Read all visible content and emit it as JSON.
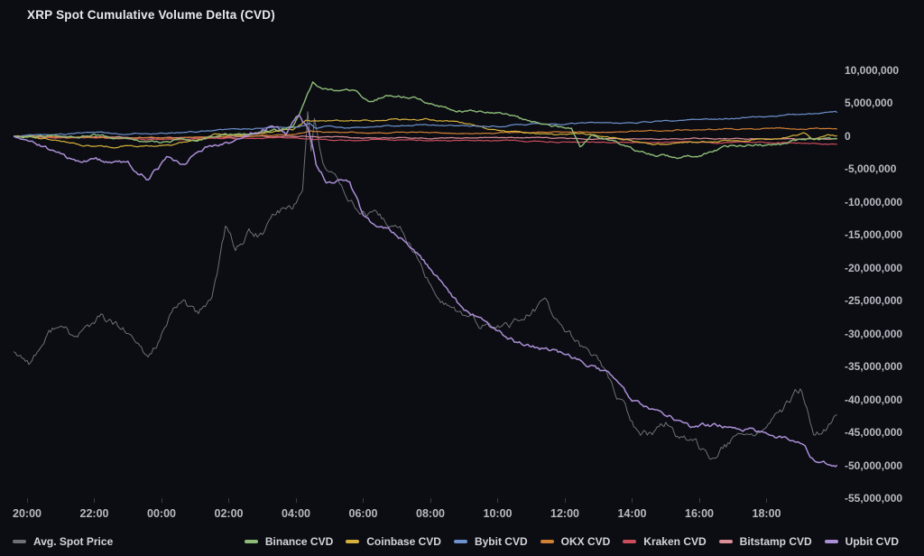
{
  "title": "XRP Spot Cumulative Volume Delta (CVD)",
  "colors": {
    "background": "#0c0d13",
    "title_text": "#e8e9ee",
    "axis_text": "#b8bac1",
    "legend_text": "#d3d5db",
    "avg_spot_price": "#6e7076",
    "binance": "#8dbd78",
    "coinbase": "#d6b23c",
    "bybit": "#6d92cd",
    "okx": "#d07f35",
    "kraken": "#cc4e5c",
    "bitstamp": "#dd8e96",
    "upbit": "#ab8fd6"
  },
  "legend": {
    "items": [
      {
        "label": "Avg. Spot Price",
        "color": "#6e7076"
      },
      {
        "label": "Binance CVD",
        "color": "#8dbd78"
      },
      {
        "label": "Coinbase CVD",
        "color": "#d6b23c"
      },
      {
        "label": "Bybit CVD",
        "color": "#6d92cd"
      },
      {
        "label": "OKX CVD",
        "color": "#d07f35"
      },
      {
        "label": "Kraken CVD",
        "color": "#cc4e5c"
      },
      {
        "label": "Bitstamp CVD",
        "color": "#dd8e96"
      },
      {
        "label": "Upbit CVD",
        "color": "#ab8fd6"
      }
    ]
  },
  "chart_data": {
    "type": "line",
    "title": "XRP Spot Cumulative Volume Delta (CVD)",
    "grid": false,
    "legend_position": "bottom",
    "x_axis": {
      "labels": [
        "20:00",
        "22:00",
        "00:00",
        "02:00",
        "04:00",
        "06:00",
        "08:00",
        "10:00",
        "12:00",
        "14:00",
        "16:00",
        "18:00"
      ],
      "tick_interval": "2 hours"
    },
    "y_axis": {
      "side": "right",
      "labels": [
        "10,000,000",
        "5,000,000",
        "0",
        "-5,000,000",
        "-10,000,000",
        "-15,000,000",
        "-20,000,000",
        "-25,000,000",
        "-30,000,000",
        "-35,000,000",
        "-40,000,000",
        "-45,000,000",
        "-50,000,000",
        "-55,000,000"
      ],
      "max": 10000000,
      "min": -55000000,
      "step": 5000000
    },
    "value_unit": "millions (multiply by 1,000,000 for right-axis units)",
    "note": "Avg. Spot Price has no visible value axis; its values below are visual positions expressed in right-axis units. Time values are hours after the 20:00 tick.",
    "draw_order": [
      0,
      6,
      5,
      4,
      2,
      3,
      1,
      7
    ],
    "series": [
      {
        "name": "Avg. Spot Price",
        "color": "#6e7076",
        "points": [
          [
            -0.4,
            -32.7
          ],
          [
            0.1,
            -34.1
          ],
          [
            0.9,
            -28.4
          ],
          [
            1.4,
            -30.7
          ],
          [
            2.2,
            -27.5
          ],
          [
            2.9,
            -29.7
          ],
          [
            3.6,
            -33.8
          ],
          [
            4.3,
            -27.3
          ],
          [
            4.7,
            -24.9
          ],
          [
            5.1,
            -27.5
          ],
          [
            5.5,
            -24.5
          ],
          [
            5.9,
            -14.2
          ],
          [
            6.2,
            -17
          ],
          [
            6.6,
            -14.7
          ],
          [
            7,
            -15.2
          ],
          [
            7.4,
            -11.5
          ],
          [
            7.9,
            -10.5
          ],
          [
            8.2,
            -8.1
          ],
          [
            8.35,
            4
          ],
          [
            8.45,
            -1.9
          ],
          [
            8.55,
            2.9
          ],
          [
            8.8,
            -4.7
          ],
          [
            9.3,
            -6.7
          ],
          [
            9.9,
            -11.5
          ],
          [
            10.8,
            -13.6
          ],
          [
            11.2,
            -14.7
          ],
          [
            11.9,
            -21.8
          ],
          [
            12.3,
            -24.5
          ],
          [
            12.8,
            -26.6
          ],
          [
            13.3,
            -28.4
          ],
          [
            13.9,
            -29.3
          ],
          [
            14.6,
            -27.9
          ],
          [
            15.4,
            -25.5
          ],
          [
            15.9,
            -28.9
          ],
          [
            16.4,
            -31.8
          ],
          [
            17,
            -33.8
          ],
          [
            17.6,
            -39.6
          ],
          [
            18.1,
            -44.4
          ],
          [
            18.5,
            -45.3
          ],
          [
            19,
            -43.7
          ],
          [
            19.6,
            -46.4
          ],
          [
            20.3,
            -48.2
          ],
          [
            21,
            -46.4
          ],
          [
            21.6,
            -45.1
          ],
          [
            22.2,
            -43.4
          ],
          [
            23,
            -38.6
          ],
          [
            23.4,
            -45.5
          ],
          [
            23.7,
            -44.7
          ],
          [
            24.1,
            -42.3
          ]
        ]
      },
      {
        "name": "Binance CVD",
        "color": "#8dbd78",
        "points": [
          [
            -0.4,
            0
          ],
          [
            1,
            -0.1
          ],
          [
            2,
            0.1
          ],
          [
            3.2,
            -0.6
          ],
          [
            4,
            -0.8
          ],
          [
            5,
            -0.4
          ],
          [
            6,
            0.2
          ],
          [
            7,
            0.7
          ],
          [
            7.9,
            1.3
          ],
          [
            8.2,
            4.5
          ],
          [
            8.5,
            8
          ],
          [
            9,
            7.1
          ],
          [
            9.8,
            6.8
          ],
          [
            10.05,
            5.6
          ],
          [
            10.25,
            5.2
          ],
          [
            10.7,
            6.3
          ],
          [
            11.5,
            6
          ],
          [
            12.1,
            4.9
          ],
          [
            12.6,
            4.2
          ],
          [
            13.2,
            3.8
          ],
          [
            13.9,
            3.6
          ],
          [
            14.3,
            3.3
          ],
          [
            14.9,
            2.2
          ],
          [
            15.4,
            1.8
          ],
          [
            16.2,
            1.2
          ],
          [
            16.45,
            -1.5
          ],
          [
            16.8,
            0
          ],
          [
            17.4,
            -0.5
          ],
          [
            18.2,
            -2.3
          ],
          [
            19.4,
            -3.3
          ],
          [
            20,
            -3
          ],
          [
            20.9,
            -1.6
          ],
          [
            22.5,
            -1.2
          ],
          [
            23,
            -0.5
          ],
          [
            24.1,
            -0.3
          ]
        ]
      },
      {
        "name": "Coinbase CVD",
        "color": "#d6b23c",
        "points": [
          [
            -0.4,
            0
          ],
          [
            0.8,
            -0.5
          ],
          [
            1.6,
            -1.3
          ],
          [
            2.6,
            -1.6
          ],
          [
            3.4,
            -1.4
          ],
          [
            4.4,
            -1.3
          ],
          [
            5.2,
            -0.3
          ],
          [
            5.6,
            0.3
          ],
          [
            6.4,
            0.3
          ],
          [
            7.2,
            0.5
          ],
          [
            7.9,
            1
          ],
          [
            8.3,
            2.3
          ],
          [
            9,
            2.4
          ],
          [
            9.6,
            2.3
          ],
          [
            10.3,
            2.4
          ],
          [
            11,
            2.5
          ],
          [
            11.9,
            2.6
          ],
          [
            12.5,
            2.3
          ],
          [
            13.1,
            1.8
          ],
          [
            13.8,
            1
          ],
          [
            14.8,
            0.5
          ],
          [
            15.8,
            0.3
          ],
          [
            16.5,
            0.5
          ],
          [
            17.5,
            -0.3
          ],
          [
            18.6,
            -1.2
          ],
          [
            19.5,
            -1
          ],
          [
            20.5,
            -0.8
          ],
          [
            21.5,
            -0.5
          ],
          [
            22.3,
            -0.5
          ],
          [
            23.1,
            0.5
          ],
          [
            23.4,
            -0.5
          ],
          [
            23.8,
            0.3
          ],
          [
            24.1,
            0.1
          ]
        ]
      },
      {
        "name": "Bybit CVD",
        "color": "#6d92cd",
        "points": [
          [
            -0.4,
            0
          ],
          [
            1,
            0.3
          ],
          [
            2,
            0.6
          ],
          [
            3,
            0.4
          ],
          [
            4,
            0.5
          ],
          [
            5,
            0.8
          ],
          [
            6,
            1
          ],
          [
            7,
            1.2
          ],
          [
            8,
            1.4
          ],
          [
            8.4,
            2
          ],
          [
            8.6,
            1.2
          ],
          [
            9,
            1.5
          ],
          [
            9.6,
            1.3
          ],
          [
            10.2,
            1.4
          ],
          [
            11,
            1.6
          ],
          [
            11.8,
            1.8
          ],
          [
            12.6,
            1.6
          ],
          [
            13.4,
            1.5
          ],
          [
            14.2,
            1.6
          ],
          [
            15,
            1.8
          ],
          [
            16,
            1.9
          ],
          [
            17,
            2
          ],
          [
            18,
            2.1
          ],
          [
            19,
            2.3
          ],
          [
            20,
            2.5
          ],
          [
            21,
            2.7
          ],
          [
            22,
            3
          ],
          [
            22.8,
            3.3
          ],
          [
            23.5,
            3.5
          ],
          [
            24.1,
            3.6
          ]
        ]
      },
      {
        "name": "OKX CVD",
        "color": "#d07f35",
        "points": [
          [
            -0.4,
            0
          ],
          [
            1,
            -0.1
          ],
          [
            2,
            -0.2
          ],
          [
            3,
            -0.3
          ],
          [
            4,
            -0.2
          ],
          [
            5,
            -0.1
          ],
          [
            6,
            0
          ],
          [
            7,
            0.1
          ],
          [
            8,
            0.3
          ],
          [
            8.4,
            0.8
          ],
          [
            9,
            0.6
          ],
          [
            10,
            0.5
          ],
          [
            11,
            0.6
          ],
          [
            12,
            0.5
          ],
          [
            13,
            0.4
          ],
          [
            14,
            0.5
          ],
          [
            15,
            0.6
          ],
          [
            16,
            0.7
          ],
          [
            17,
            0.6
          ],
          [
            18,
            0.8
          ],
          [
            19,
            0.9
          ],
          [
            20,
            1
          ],
          [
            21,
            1.1
          ],
          [
            22,
            1.2
          ],
          [
            23,
            1.2
          ],
          [
            24.1,
            1.1
          ]
        ]
      },
      {
        "name": "Kraken CVD",
        "color": "#cc4e5c",
        "points": [
          [
            -0.4,
            0
          ],
          [
            1,
            -0.2
          ],
          [
            2,
            -0.3
          ],
          [
            3,
            -0.4
          ],
          [
            4,
            -0.5
          ],
          [
            5,
            -0.4
          ],
          [
            6,
            -0.3
          ],
          [
            7,
            -0.3
          ],
          [
            8,
            -0.2
          ],
          [
            8.5,
            -0.5
          ],
          [
            9.5,
            -0.6
          ],
          [
            10.5,
            -0.5
          ],
          [
            11.5,
            -0.6
          ],
          [
            12.5,
            -0.7
          ],
          [
            13.5,
            -0.6
          ],
          [
            14.5,
            -0.7
          ],
          [
            15.5,
            -0.8
          ],
          [
            16.5,
            -0.8
          ],
          [
            17.5,
            -0.9
          ],
          [
            18.5,
            -1
          ],
          [
            19.5,
            -0.9
          ],
          [
            20.5,
            -1
          ],
          [
            21.5,
            -0.9
          ],
          [
            22.5,
            -1
          ],
          [
            23.5,
            -1.1
          ],
          [
            24.1,
            -1.2
          ]
        ]
      },
      {
        "name": "Bitstamp CVD",
        "color": "#dd8e96",
        "points": [
          [
            -0.4,
            0
          ],
          [
            2,
            -0.1
          ],
          [
            4,
            -0.2
          ],
          [
            6,
            -0.1
          ],
          [
            8,
            0
          ],
          [
            10,
            -0.2
          ],
          [
            12,
            -0.3
          ],
          [
            14,
            -0.2
          ],
          [
            16,
            -0.3
          ],
          [
            18,
            -0.4
          ],
          [
            20,
            -0.3
          ],
          [
            22,
            -0.4
          ],
          [
            24.1,
            -0.4
          ]
        ]
      },
      {
        "name": "Upbit CVD",
        "color": "#ab8fd6",
        "points": [
          [
            -0.4,
            0
          ],
          [
            0.5,
            -1.9
          ],
          [
            1.4,
            -4
          ],
          [
            2.2,
            -3.7
          ],
          [
            3,
            -4.4
          ],
          [
            3.6,
            -6.3
          ],
          [
            4.2,
            -3.3
          ],
          [
            4.7,
            -4.4
          ],
          [
            5.4,
            -1.2
          ],
          [
            6,
            -0.8
          ],
          [
            6.6,
            0.1
          ],
          [
            7.3,
            1.8
          ],
          [
            7.7,
            0.4
          ],
          [
            8.1,
            3.2
          ],
          [
            8.35,
            1.5
          ],
          [
            8.5,
            -1.2
          ],
          [
            8.6,
            -4.4
          ],
          [
            8.9,
            -6.7
          ],
          [
            9.6,
            -7.1
          ],
          [
            10,
            -12.2
          ],
          [
            10.4,
            -13.8
          ],
          [
            11,
            -14.7
          ],
          [
            11.3,
            -16
          ],
          [
            11.8,
            -19
          ],
          [
            12.3,
            -21.8
          ],
          [
            12.9,
            -25.9
          ],
          [
            13.4,
            -27.5
          ],
          [
            14,
            -30
          ],
          [
            14.6,
            -31.4
          ],
          [
            15.1,
            -31.8
          ],
          [
            15.7,
            -32.7
          ],
          [
            16.4,
            -34.1
          ],
          [
            17.3,
            -35.9
          ],
          [
            18,
            -40.3
          ],
          [
            18.9,
            -41.9
          ],
          [
            19.7,
            -44
          ],
          [
            20.7,
            -44
          ],
          [
            21.8,
            -44.8
          ],
          [
            22.4,
            -45.8
          ],
          [
            23,
            -46.2
          ],
          [
            23.4,
            -49.2
          ],
          [
            24.1,
            -49.9
          ]
        ]
      }
    ]
  }
}
